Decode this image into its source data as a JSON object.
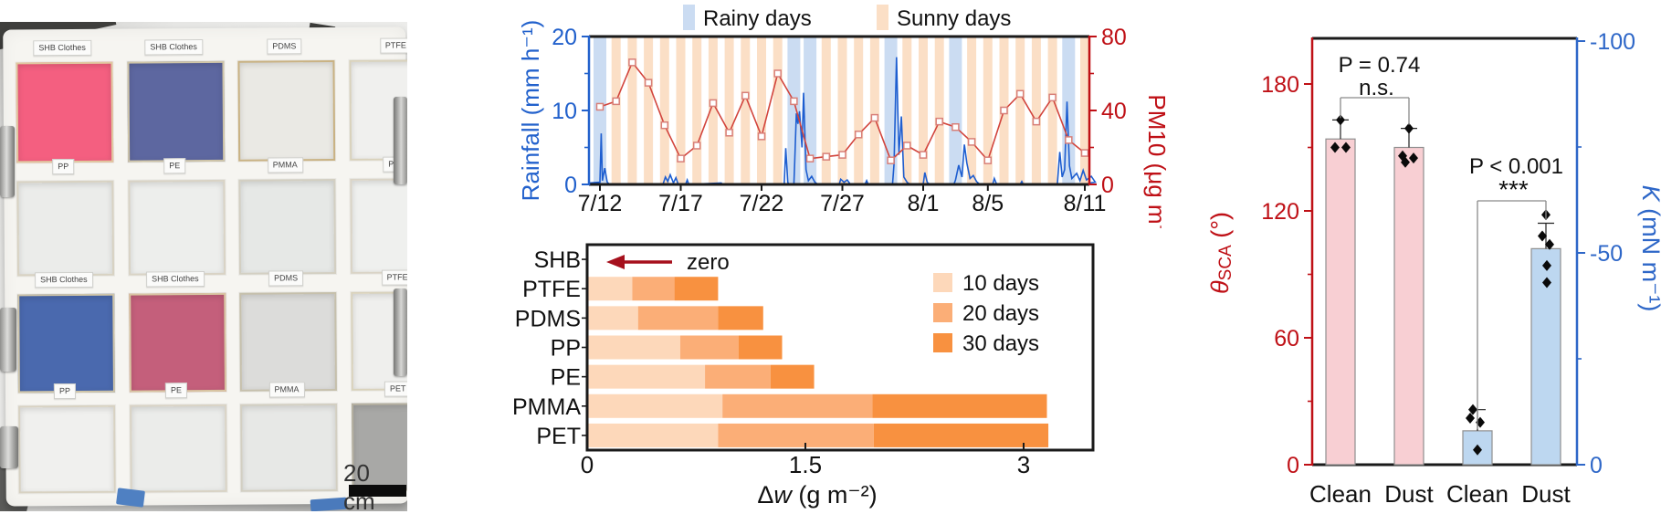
{
  "photo": {
    "scale_label": "20 cm",
    "grid": [
      [
        {
          "tag": "SHB Clothes",
          "color": "#f45f80",
          "frame": "#e0c9a0"
        },
        {
          "tag": "SHB Clothes",
          "color": "#5d67a0",
          "frame": "#cfc5a8"
        },
        {
          "tag": "PDMS",
          "color": "#eae9e4",
          "frame": "#c9b283"
        },
        {
          "tag": "PTFE",
          "color": "#f0f0ee",
          "frame": "#d9d2bc"
        }
      ],
      [
        {
          "tag": "PP",
          "color": "#ebecea",
          "frame": "#d8d2c2"
        },
        {
          "tag": "PE",
          "color": "#edeeec",
          "frame": "#d9d3c5"
        },
        {
          "tag": "PMMA",
          "color": "#e6e8e6",
          "frame": "#d3cfc2"
        },
        {
          "tag": "PET",
          "color": "#eff0ee",
          "frame": "#dad4c6"
        }
      ],
      [
        {
          "tag": "SHB Clothes",
          "color": "#4a69ae",
          "frame": "#cfc5a8"
        },
        {
          "tag": "SHB Clothes",
          "color": "#c45f7b",
          "frame": "#d8c5a2"
        },
        {
          "tag": "PDMS",
          "color": "#dcdcda",
          "frame": "#c6c0ac"
        },
        {
          "tag": "PTFE",
          "color": "#efefed",
          "frame": "#d9d2bc"
        }
      ],
      [
        {
          "tag": "PP",
          "color": "#f0f0ee",
          "frame": "#d8d2c2"
        },
        {
          "tag": "PE",
          "color": "#ebecea",
          "frame": "#d9d3c5"
        },
        {
          "tag": "PMMA",
          "color": "#e7e8e6",
          "frame": "#d3cfc2"
        },
        {
          "tag": "PET",
          "color": "#a8a8a6",
          "frame": "#b5b0a0"
        }
      ]
    ]
  },
  "chart_data": [
    {
      "type": "line",
      "name": "weather",
      "legend": [
        {
          "label": "Rainy days",
          "color": "#cbdcf2"
        },
        {
          "label": "Sunny days",
          "color": "#fbdfc6"
        }
      ],
      "left_axis": {
        "label": "Rainfall (mm h⁻¹)",
        "color": "#2261cc",
        "min": 0,
        "max": 20,
        "ticks": [
          0,
          10,
          20
        ],
        "tick_labels": [
          "0",
          "10",
          "20"
        ],
        "minor": [
          5,
          15
        ]
      },
      "right_axis": {
        "label": "PM10 (μg m⁻³)",
        "color": "#bf1016",
        "min": 0,
        "max": 80,
        "ticks": [
          0,
          40,
          80
        ],
        "tick_labels": [
          "0",
          "40",
          "80"
        ],
        "minor": [
          20,
          60
        ]
      },
      "n_days": 31,
      "x_tick_days": [
        0,
        5,
        10,
        15,
        20,
        24,
        30
      ],
      "x_tick_labels": [
        "7/12",
        "7/17",
        "7/22",
        "7/27",
        "8/1",
        "8/5",
        "8/11"
      ],
      "day_type": [
        "rainy",
        "sunny",
        "sunny",
        "sunny",
        "sunny",
        "sunny",
        "sunny",
        "sunny",
        "sunny",
        "sunny",
        "sunny",
        "sunny",
        "rainy",
        "rainy",
        "sunny",
        "sunny",
        "sunny",
        "sunny",
        "rainy",
        "sunny",
        "sunny",
        "sunny",
        "rainy",
        "sunny",
        "sunny",
        "sunny",
        "sunny",
        "sunny",
        "sunny",
        "rainy",
        "sunny"
      ],
      "pm10": [
        42,
        45,
        66,
        55,
        32,
        14,
        21,
        44,
        28,
        48,
        26,
        60,
        45,
        14,
        15,
        16,
        27,
        36,
        13,
        21,
        16,
        34,
        31,
        23,
        13,
        40,
        49,
        34,
        47,
        24,
        17
      ],
      "pm10_line_color": "#d2443c",
      "pm10_marker_stroke": "#d87f78",
      "rain_line_color": "#1e5ed0",
      "rainfall": [
        [
          -0.65,
          0.2
        ],
        [
          0.0,
          0.3
        ],
        [
          0.08,
          6.9
        ],
        [
          0.15,
          0.5
        ],
        [
          0.3,
          2.2
        ],
        [
          0.45,
          0.3
        ],
        [
          0.6,
          0
        ],
        [
          3.9,
          0
        ],
        [
          4.05,
          1.0
        ],
        [
          4.2,
          0.4
        ],
        [
          4.35,
          1.3
        ],
        [
          4.55,
          0.2
        ],
        [
          4.7,
          0.9
        ],
        [
          4.85,
          0
        ],
        [
          5.3,
          0
        ],
        [
          5.4,
          0.6
        ],
        [
          5.5,
          0
        ],
        [
          7.5,
          0.2
        ],
        [
          7.6,
          0
        ],
        [
          11.4,
          0
        ],
        [
          11.5,
          4.9
        ],
        [
          11.62,
          0.3
        ],
        [
          11.7,
          0
        ],
        [
          12.0,
          0
        ],
        [
          12.05,
          3.0
        ],
        [
          12.15,
          9.6
        ],
        [
          12.25,
          8.2
        ],
        [
          12.35,
          9.9
        ],
        [
          12.5,
          5.0
        ],
        [
          12.6,
          12.4
        ],
        [
          12.75,
          2.0
        ],
        [
          12.9,
          0.5
        ],
        [
          13.1,
          1.1
        ],
        [
          13.3,
          0.3
        ],
        [
          13.5,
          0
        ],
        [
          14.8,
          0
        ],
        [
          14.9,
          0.7
        ],
        [
          15.1,
          0.3
        ],
        [
          15.3,
          0.6
        ],
        [
          15.5,
          0
        ],
        [
          16.4,
          0
        ],
        [
          16.5,
          0.5
        ],
        [
          16.6,
          0
        ],
        [
          18.1,
          0
        ],
        [
          18.2,
          2.8
        ],
        [
          18.35,
          17.2
        ],
        [
          18.5,
          4.0
        ],
        [
          18.65,
          9.2
        ],
        [
          18.8,
          1.0
        ],
        [
          19.0,
          0.3
        ],
        [
          19.2,
          0
        ],
        [
          20.0,
          0
        ],
        [
          20.1,
          1.6
        ],
        [
          20.25,
          0.3
        ],
        [
          20.4,
          0
        ],
        [
          21.9,
          0
        ],
        [
          22.0,
          0.6
        ],
        [
          22.2,
          2.6
        ],
        [
          22.4,
          1.0
        ],
        [
          22.55,
          5.4
        ],
        [
          22.7,
          2.9
        ],
        [
          22.9,
          0.8
        ],
        [
          23.1,
          1.2
        ],
        [
          23.3,
          0.4
        ],
        [
          23.5,
          0
        ],
        [
          24.3,
          0
        ],
        [
          24.4,
          0.8
        ],
        [
          24.55,
          0
        ],
        [
          26.0,
          0
        ],
        [
          26.1,
          0.4
        ],
        [
          26.2,
          0
        ],
        [
          28.3,
          0
        ],
        [
          28.45,
          4.4
        ],
        [
          28.6,
          1.0
        ],
        [
          28.75,
          2.0
        ],
        [
          28.9,
          11.2
        ],
        [
          29.05,
          2.5
        ],
        [
          29.2,
          0.8
        ],
        [
          29.5,
          1.5
        ],
        [
          29.7,
          0.5
        ],
        [
          29.9,
          1.9
        ],
        [
          30.1,
          0.6
        ],
        [
          30.4,
          1.1
        ],
        [
          30.65,
          0.3
        ]
      ]
    },
    {
      "type": "bar",
      "name": "deposition",
      "orientation": "horizontal-stacked",
      "categories": [
        "SHB",
        "PTFE",
        "PDMS",
        "PP",
        "PE",
        "PMMA",
        "PET"
      ],
      "series": [
        {
          "name": "10 days",
          "color": "#fdd8ba",
          "values": [
            0,
            0.31,
            0.35,
            0.64,
            0.81,
            0.93,
            0.9
          ]
        },
        {
          "name": "20 days",
          "color": "#fbae77",
          "values": [
            0,
            0.29,
            0.55,
            0.4,
            0.45,
            1.03,
            1.07
          ]
        },
        {
          "name": "30 days",
          "color": "#f89140",
          "values": [
            0,
            0.3,
            0.31,
            0.3,
            0.3,
            1.2,
            1.2
          ]
        }
      ],
      "xlim": [
        0,
        3.47
      ],
      "x_ticks": [
        0,
        1.5,
        3
      ],
      "x_tick_labels": [
        "0",
        "1.5",
        "3"
      ],
      "xlabel_parts": {
        "prefix": "Δ",
        "italic": "w",
        "suffix": " (g m⁻²)"
      },
      "annotation": {
        "text": "zero",
        "arrow_color": "#a6101d"
      }
    },
    {
      "type": "bar",
      "name": "wettability",
      "groups": [
        {
          "x_label": "Clean",
          "axis": "left",
          "bar_color": "#f8cfd3",
          "value": 154,
          "err_hi": 163,
          "points": [
            [
              -6,
              150
            ],
            [
              6,
              150
            ],
            [
              0,
              163
            ]
          ]
        },
        {
          "x_label": "Dust",
          "axis": "left",
          "bar_color": "#f8cfd3",
          "value": 150,
          "err_hi": 159,
          "points": [
            [
              0,
              159
            ],
            [
              -7,
              146
            ],
            [
              5,
              145
            ],
            [
              -4,
              143
            ]
          ]
        },
        {
          "x_label": "Clean",
          "axis": "right",
          "bar_color": "#bdd7f0",
          "value": -8,
          "err_hi": -13,
          "points": [
            [
              -5,
              -13
            ],
            [
              -8,
              -11
            ],
            [
              3,
              -10
            ],
            [
              0,
              -3.5
            ]
          ]
        },
        {
          "x_label": "Dust",
          "axis": "right",
          "bar_color": "#bdd7f0",
          "value": -51,
          "err_hi": -57,
          "points": [
            [
              0,
              -59
            ],
            [
              -4,
              -54
            ],
            [
              4,
              -52
            ],
            [
              1,
              -47
            ],
            [
              1,
              -43
            ]
          ]
        }
      ],
      "bar_stroke": "#8f8f8f",
      "left_axis": {
        "label_parts": {
          "italic": "θ",
          "sub": "SCA",
          "suffix": " (°)"
        },
        "color": "#bf1016",
        "min": 0,
        "max": 200,
        "ticks": [
          0,
          60,
          120,
          180
        ],
        "tick_labels": [
          "0",
          "60",
          "120",
          "180"
        ],
        "minor": [
          30,
          90,
          150
        ]
      },
      "right_axis": {
        "label_parts": {
          "italic": "K",
          "suffix": " (mN m⁻¹)"
        },
        "color": "#2e67c8",
        "min": 0,
        "max": -100,
        "ticks": [
          0,
          -50,
          -100
        ],
        "tick_labels": [
          "0",
          "-50",
          "-100"
        ],
        "minor": [
          -25,
          -75
        ]
      },
      "annotations": [
        {
          "line1": "P = 0.74",
          "line2": "n.s.",
          "between": [
            0,
            1
          ],
          "bracket_y": 107,
          "text1_y": 79,
          "text2_y": 104
        },
        {
          "line1": "P < 0.001",
          "line2": "***",
          "between": [
            2,
            3
          ],
          "bracket_y": 220,
          "text1_y": 190,
          "text2_y": 217
        }
      ]
    }
  ]
}
